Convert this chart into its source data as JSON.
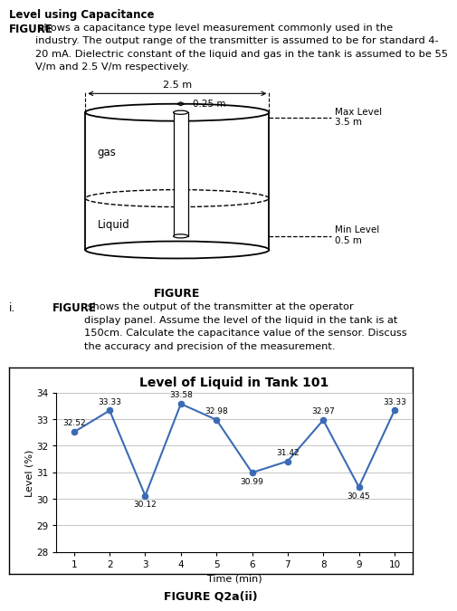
{
  "title_text": "Level using Capacitance",
  "para_bold": "FIGURE",
  "para_rest": " shows a capacitance type level measurement commonly used in the\nindustry. The output range of the transmitter is assumed to be for standard 4-\n20 mA. Dielectric constant of the liquid and gas in the tank is assumed to be 55\nV/m and 2.5 V/m respectively.",
  "figure_label": "FIGURE",
  "question_i_label": "i.",
  "q_bold": "FIGURE",
  "q_rest": " shows the output of the transmitter at the operator\ndisplay panel. Assume the level of the liquid in the tank is at\n150cm. Calculate the capacitance value of the sensor. Discuss\nthe accuracy and precision of the measurement.",
  "chart_title": "Level of Liquid in Tank 101",
  "x_label": "Time (min)",
  "y_label": "Level (%)",
  "x_values": [
    1,
    2,
    3,
    4,
    5,
    6,
    7,
    8,
    9,
    10
  ],
  "y_values": [
    32.52,
    33.33,
    30.12,
    33.58,
    32.98,
    30.99,
    31.42,
    32.97,
    30.45,
    33.33
  ],
  "data_labels": [
    "32.52",
    "33.33",
    "30.12",
    "33.58",
    "32.98",
    "30.99",
    "31.42",
    "32.97",
    "30.45",
    "33.33"
  ],
  "label_va": [
    "bottom",
    "bottom",
    "top",
    "bottom",
    "bottom",
    "top",
    "bottom",
    "bottom",
    "top",
    "bottom"
  ],
  "label_dy": [
    0.18,
    0.18,
    -0.18,
    0.18,
    0.18,
    -0.18,
    0.18,
    0.18,
    -0.18,
    0.18
  ],
  "y_min": 28,
  "y_max": 34,
  "line_color": "#3C6BB5",
  "figure_q_label": "FIGURE Q2a(ii)",
  "gas_label": "gas",
  "liquid_label": "Liquid",
  "tank_width_label": "2.5 m",
  "probe_width_label": "0.25 m",
  "max_level_label": "Max Level",
  "max_level_val": "3.5 m",
  "min_level_label": "Min Level",
  "min_level_val": "0.5 m"
}
